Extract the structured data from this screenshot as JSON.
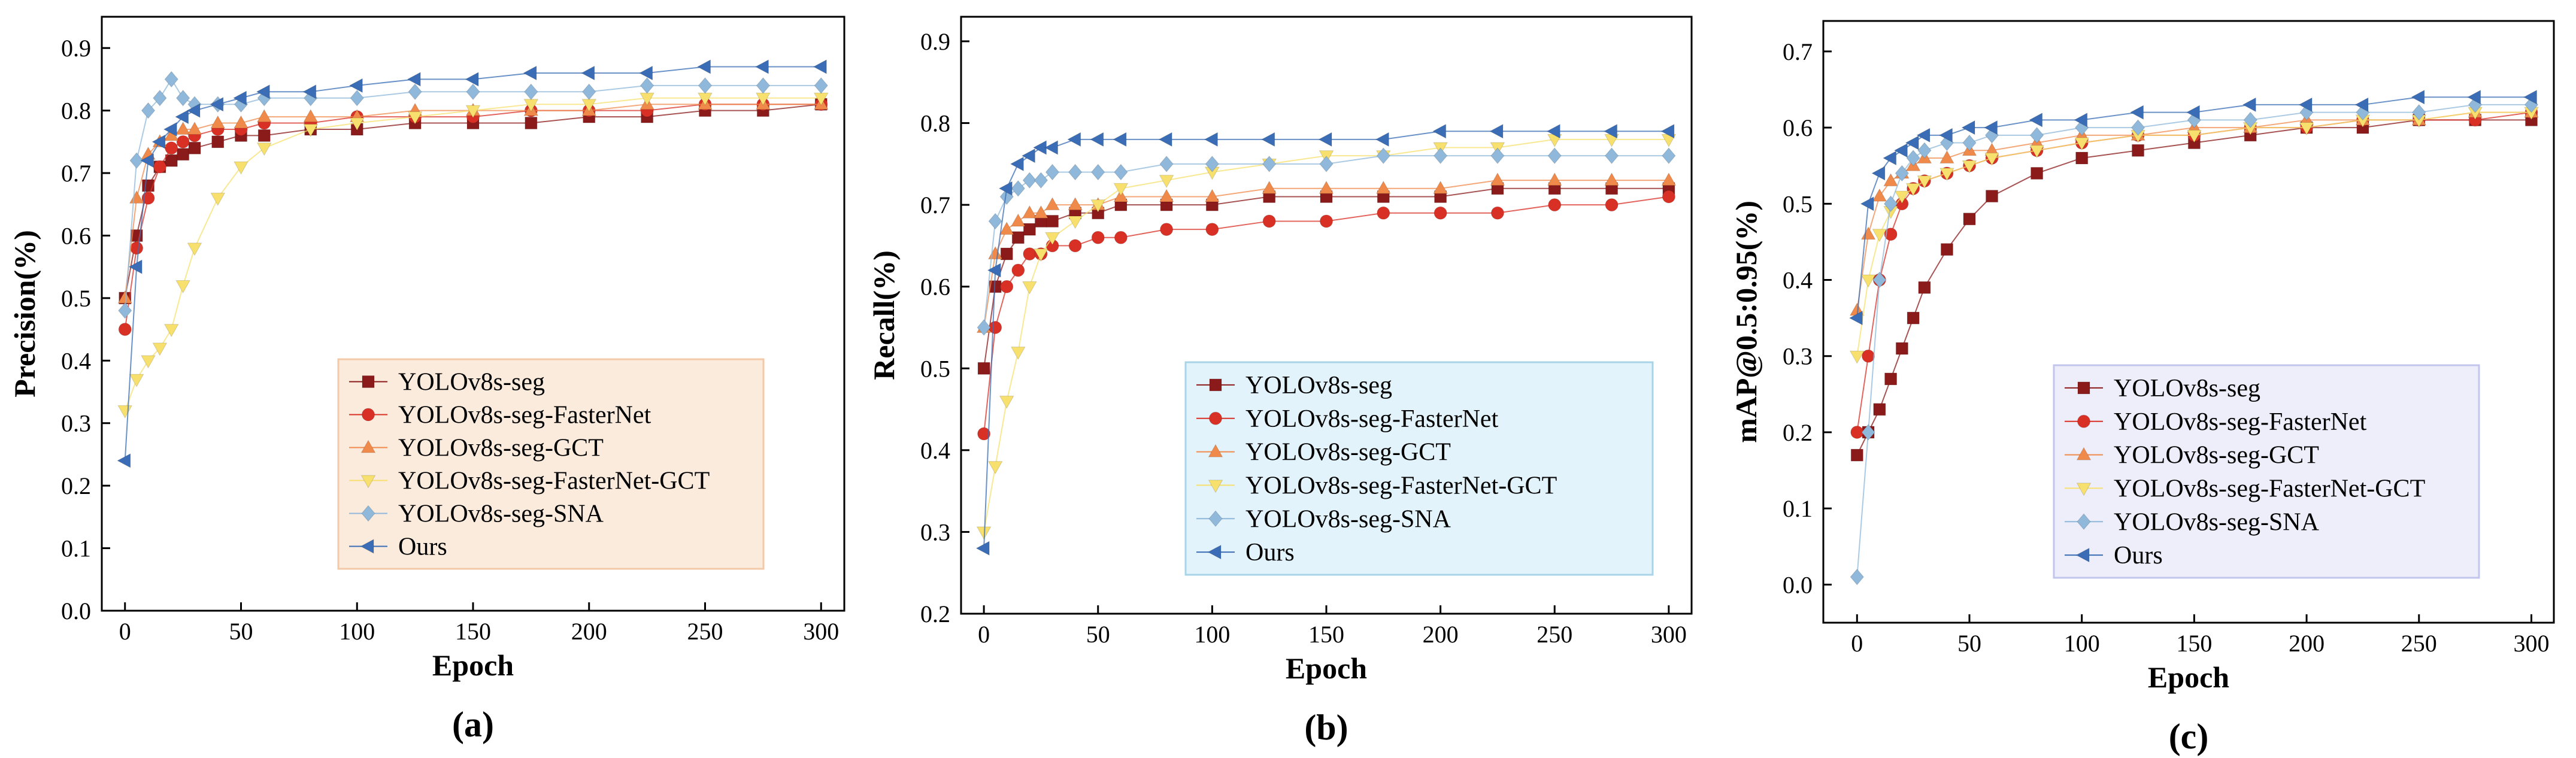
{
  "figure": {
    "legend_entries": [
      "YOLOv8s-seg",
      "YOLOv8s-seg-FasterNet",
      "YOLOv8s-seg-GCT",
      "YOLOv8s-seg-FasterNet-GCT",
      "YOLOv8s-seg-SNA",
      "Ours"
    ],
    "series_style": [
      {
        "name": "YOLOv8s-seg",
        "color": "#8B1A1A",
        "marker": "square"
      },
      {
        "name": "YOLOv8s-seg-FasterNet",
        "color": "#D93025",
        "marker": "circle"
      },
      {
        "name": "YOLOv8s-seg-GCT",
        "color": "#F08A4B",
        "marker": "triangle-up"
      },
      {
        "name": "YOLOv8s-seg-FasterNet-GCT",
        "color": "#F7E06E",
        "marker": "triangle-down"
      },
      {
        "name": "YOLOv8s-seg-SNA",
        "color": "#8FB8DA",
        "marker": "diamond"
      },
      {
        "name": "Ours",
        "color": "#3A6DB5",
        "marker": "triangle-left"
      }
    ]
  },
  "chart_data": [
    {
      "type": "scatter",
      "panel_label": "(a)",
      "xlabel": "Epoch",
      "ylabel": "Precision(%)",
      "xlim": [
        -10,
        310
      ],
      "ylim": [
        0.0,
        0.95
      ],
      "xticks": [
        0,
        50,
        100,
        150,
        200,
        250,
        300
      ],
      "xtick_labels": [
        "0",
        "50",
        "100",
        "150",
        "200",
        "250",
        "300"
      ],
      "yticks": [
        0.0,
        0.1,
        0.2,
        0.3,
        0.4,
        0.5,
        0.6,
        0.7,
        0.8,
        0.9
      ],
      "ytick_labels": [
        "0.0",
        "0.1",
        "0.2",
        "0.3",
        "0.4",
        "0.5",
        "0.6",
        "0.7",
        "0.8",
        "0.9"
      ],
      "legend_position": "bottom-right",
      "legend_bg": "#FBEBDD",
      "legend_border": "#F3C9A8",
      "series": [
        {
          "name": "YOLOv8s-seg",
          "x": [
            0,
            5,
            10,
            15,
            20,
            25,
            30,
            40,
            50,
            60,
            80,
            100,
            125,
            150,
            175,
            200,
            225,
            250,
            275,
            300
          ],
          "values": [
            0.5,
            0.6,
            0.68,
            0.71,
            0.72,
            0.73,
            0.74,
            0.75,
            0.76,
            0.76,
            0.77,
            0.77,
            0.78,
            0.78,
            0.78,
            0.79,
            0.79,
            0.8,
            0.8,
            0.81
          ]
        },
        {
          "name": "YOLOv8s-seg-FasterNet",
          "x": [
            0,
            5,
            10,
            15,
            20,
            25,
            30,
            40,
            50,
            60,
            80,
            100,
            125,
            150,
            175,
            200,
            225,
            250,
            275,
            300
          ],
          "values": [
            0.45,
            0.58,
            0.66,
            0.71,
            0.74,
            0.75,
            0.76,
            0.77,
            0.77,
            0.78,
            0.78,
            0.79,
            0.79,
            0.79,
            0.8,
            0.8,
            0.8,
            0.81,
            0.81,
            0.81
          ]
        },
        {
          "name": "YOLOv8s-seg-GCT",
          "x": [
            0,
            5,
            10,
            15,
            20,
            25,
            30,
            40,
            50,
            60,
            80,
            100,
            125,
            150,
            175,
            200,
            225,
            250,
            275,
            300
          ],
          "values": [
            0.5,
            0.66,
            0.73,
            0.75,
            0.76,
            0.77,
            0.77,
            0.78,
            0.78,
            0.79,
            0.79,
            0.79,
            0.8,
            0.8,
            0.8,
            0.8,
            0.81,
            0.81,
            0.81,
            0.81
          ]
        },
        {
          "name": "YOLOv8s-seg-FasterNet-GCT",
          "x": [
            0,
            5,
            10,
            15,
            20,
            25,
            30,
            40,
            50,
            60,
            80,
            100,
            125,
            150,
            175,
            200,
            225,
            250,
            275,
            300
          ],
          "values": [
            0.32,
            0.37,
            0.4,
            0.42,
            0.45,
            0.52,
            0.58,
            0.66,
            0.71,
            0.74,
            0.77,
            0.78,
            0.79,
            0.8,
            0.81,
            0.81,
            0.82,
            0.82,
            0.82,
            0.82
          ]
        },
        {
          "name": "YOLOv8s-seg-SNA",
          "x": [
            0,
            5,
            10,
            15,
            20,
            25,
            30,
            40,
            50,
            60,
            80,
            100,
            125,
            150,
            175,
            200,
            225,
            250,
            275,
            300
          ],
          "values": [
            0.48,
            0.72,
            0.8,
            0.82,
            0.85,
            0.82,
            0.81,
            0.81,
            0.81,
            0.82,
            0.82,
            0.82,
            0.83,
            0.83,
            0.83,
            0.83,
            0.84,
            0.84,
            0.84,
            0.84
          ]
        },
        {
          "name": "Ours",
          "x": [
            0,
            5,
            10,
            15,
            20,
            25,
            30,
            40,
            50,
            60,
            80,
            100,
            125,
            150,
            175,
            200,
            225,
            250,
            275,
            300
          ],
          "values": [
            0.24,
            0.55,
            0.72,
            0.75,
            0.77,
            0.79,
            0.8,
            0.81,
            0.82,
            0.83,
            0.83,
            0.84,
            0.85,
            0.85,
            0.86,
            0.86,
            0.86,
            0.87,
            0.87,
            0.87
          ]
        }
      ]
    },
    {
      "type": "scatter",
      "panel_label": "(b)",
      "xlabel": "Epoch",
      "ylabel": "Recall(%)",
      "xlim": [
        -10,
        310
      ],
      "ylim": [
        0.2,
        0.93
      ],
      "xticks": [
        0,
        50,
        100,
        150,
        200,
        250,
        300
      ],
      "xtick_labels": [
        "0",
        "50",
        "100",
        "150",
        "200",
        "250",
        "300"
      ],
      "yticks": [
        0.2,
        0.3,
        0.4,
        0.5,
        0.6,
        0.7,
        0.8,
        0.9
      ],
      "ytick_labels": [
        "0.2",
        "0.3",
        "0.4",
        "0.5",
        "0.6",
        "0.7",
        "0.8",
        "0.9"
      ],
      "legend_position": "bottom-right",
      "legend_bg": "#E3F3FB",
      "legend_border": "#A9D4E8",
      "series": [
        {
          "name": "YOLOv8s-seg",
          "x": [
            0,
            5,
            10,
            15,
            20,
            25,
            30,
            40,
            50,
            60,
            80,
            100,
            125,
            150,
            175,
            200,
            225,
            250,
            275,
            300
          ],
          "values": [
            0.5,
            0.6,
            0.64,
            0.66,
            0.67,
            0.68,
            0.68,
            0.69,
            0.69,
            0.7,
            0.7,
            0.7,
            0.71,
            0.71,
            0.71,
            0.71,
            0.72,
            0.72,
            0.72,
            0.72
          ]
        },
        {
          "name": "YOLOv8s-seg-FasterNet",
          "x": [
            0,
            5,
            10,
            15,
            20,
            25,
            30,
            40,
            50,
            60,
            80,
            100,
            125,
            150,
            175,
            200,
            225,
            250,
            275,
            300
          ],
          "values": [
            0.42,
            0.55,
            0.6,
            0.62,
            0.64,
            0.64,
            0.65,
            0.65,
            0.66,
            0.66,
            0.67,
            0.67,
            0.68,
            0.68,
            0.69,
            0.69,
            0.69,
            0.7,
            0.7,
            0.71
          ]
        },
        {
          "name": "YOLOv8s-seg-GCT",
          "x": [
            0,
            5,
            10,
            15,
            20,
            25,
            30,
            40,
            50,
            60,
            80,
            100,
            125,
            150,
            175,
            200,
            225,
            250,
            275,
            300
          ],
          "values": [
            0.55,
            0.64,
            0.67,
            0.68,
            0.69,
            0.69,
            0.7,
            0.7,
            0.7,
            0.71,
            0.71,
            0.71,
            0.72,
            0.72,
            0.72,
            0.72,
            0.73,
            0.73,
            0.73,
            0.73
          ]
        },
        {
          "name": "YOLOv8s-seg-FasterNet-GCT",
          "x": [
            0,
            5,
            10,
            15,
            20,
            25,
            30,
            40,
            50,
            60,
            80,
            100,
            125,
            150,
            175,
            200,
            225,
            250,
            275,
            300
          ],
          "values": [
            0.3,
            0.38,
            0.46,
            0.52,
            0.6,
            0.64,
            0.66,
            0.68,
            0.7,
            0.72,
            0.73,
            0.74,
            0.75,
            0.76,
            0.76,
            0.77,
            0.77,
            0.78,
            0.78,
            0.78
          ]
        },
        {
          "name": "YOLOv8s-seg-SNA",
          "x": [
            0,
            5,
            10,
            15,
            20,
            25,
            30,
            40,
            50,
            60,
            80,
            100,
            125,
            150,
            175,
            200,
            225,
            250,
            275,
            300
          ],
          "values": [
            0.55,
            0.68,
            0.71,
            0.72,
            0.73,
            0.73,
            0.74,
            0.74,
            0.74,
            0.74,
            0.75,
            0.75,
            0.75,
            0.75,
            0.76,
            0.76,
            0.76,
            0.76,
            0.76,
            0.76
          ]
        },
        {
          "name": "Ours",
          "x": [
            0,
            5,
            10,
            15,
            20,
            25,
            30,
            40,
            50,
            60,
            80,
            100,
            125,
            150,
            175,
            200,
            225,
            250,
            275,
            300
          ],
          "values": [
            0.28,
            0.62,
            0.72,
            0.75,
            0.76,
            0.77,
            0.77,
            0.78,
            0.78,
            0.78,
            0.78,
            0.78,
            0.78,
            0.78,
            0.78,
            0.79,
            0.79,
            0.79,
            0.79,
            0.79
          ]
        }
      ]
    },
    {
      "type": "scatter",
      "panel_label": "(c)",
      "xlabel": "Epoch",
      "ylabel": "mAP@0.5:0.95(%)",
      "xlim": [
        -15,
        310
      ],
      "ylim": [
        -0.05,
        0.74
      ],
      "xticks": [
        0,
        50,
        100,
        150,
        200,
        250,
        300
      ],
      "xtick_labels": [
        "0",
        "50",
        "100",
        "150",
        "200",
        "250",
        "300"
      ],
      "yticks": [
        0.0,
        0.1,
        0.2,
        0.3,
        0.4,
        0.5,
        0.6,
        0.7
      ],
      "ytick_labels": [
        "0.0",
        "0.1",
        "0.2",
        "0.3",
        "0.4",
        "0.5",
        "0.6",
        "0.7"
      ],
      "legend_position": "bottom-right",
      "legend_bg": "#EDEEFA",
      "legend_border": "#C3C6EC",
      "series": [
        {
          "name": "YOLOv8s-seg",
          "x": [
            0,
            5,
            10,
            15,
            20,
            25,
            30,
            40,
            50,
            60,
            80,
            100,
            125,
            150,
            175,
            200,
            225,
            250,
            275,
            300
          ],
          "values": [
            0.17,
            0.2,
            0.23,
            0.27,
            0.31,
            0.35,
            0.39,
            0.44,
            0.48,
            0.51,
            0.54,
            0.56,
            0.57,
            0.58,
            0.59,
            0.6,
            0.6,
            0.61,
            0.61,
            0.61
          ]
        },
        {
          "name": "YOLOv8s-seg-FasterNet",
          "x": [
            0,
            5,
            10,
            15,
            20,
            25,
            30,
            40,
            50,
            60,
            80,
            100,
            125,
            150,
            175,
            200,
            225,
            250,
            275,
            300
          ],
          "values": [
            0.2,
            0.3,
            0.4,
            0.46,
            0.5,
            0.52,
            0.53,
            0.54,
            0.55,
            0.56,
            0.57,
            0.58,
            0.59,
            0.59,
            0.6,
            0.6,
            0.61,
            0.61,
            0.61,
            0.62
          ]
        },
        {
          "name": "YOLOv8s-seg-GCT",
          "x": [
            0,
            5,
            10,
            15,
            20,
            25,
            30,
            40,
            50,
            60,
            80,
            100,
            125,
            150,
            175,
            200,
            225,
            250,
            275,
            300
          ],
          "values": [
            0.36,
            0.46,
            0.51,
            0.53,
            0.54,
            0.55,
            0.56,
            0.56,
            0.57,
            0.57,
            0.58,
            0.59,
            0.59,
            0.6,
            0.6,
            0.61,
            0.61,
            0.61,
            0.62,
            0.62
          ]
        },
        {
          "name": "YOLOv8s-seg-FasterNet-GCT",
          "x": [
            0,
            5,
            10,
            15,
            20,
            25,
            30,
            40,
            50,
            60,
            80,
            100,
            125,
            150,
            175,
            200,
            225,
            250,
            275,
            300
          ],
          "values": [
            0.3,
            0.4,
            0.46,
            0.49,
            0.51,
            0.52,
            0.53,
            0.54,
            0.55,
            0.56,
            0.57,
            0.58,
            0.59,
            0.59,
            0.6,
            0.6,
            0.61,
            0.61,
            0.62,
            0.62
          ]
        },
        {
          "name": "YOLOv8s-seg-SNA",
          "x": [
            0,
            5,
            10,
            15,
            20,
            25,
            30,
            40,
            50,
            60,
            80,
            100,
            125,
            150,
            175,
            200,
            225,
            250,
            275,
            300
          ],
          "values": [
            0.01,
            0.2,
            0.4,
            0.5,
            0.54,
            0.56,
            0.57,
            0.58,
            0.58,
            0.59,
            0.59,
            0.6,
            0.6,
            0.61,
            0.61,
            0.62,
            0.62,
            0.62,
            0.63,
            0.63
          ]
        },
        {
          "name": "Ours",
          "x": [
            0,
            5,
            10,
            15,
            20,
            25,
            30,
            40,
            50,
            60,
            80,
            100,
            125,
            150,
            175,
            200,
            225,
            250,
            275,
            300
          ],
          "values": [
            0.35,
            0.5,
            0.54,
            0.56,
            0.57,
            0.58,
            0.59,
            0.59,
            0.6,
            0.6,
            0.61,
            0.61,
            0.62,
            0.62,
            0.63,
            0.63,
            0.63,
            0.64,
            0.64,
            0.64
          ]
        }
      ]
    }
  ]
}
